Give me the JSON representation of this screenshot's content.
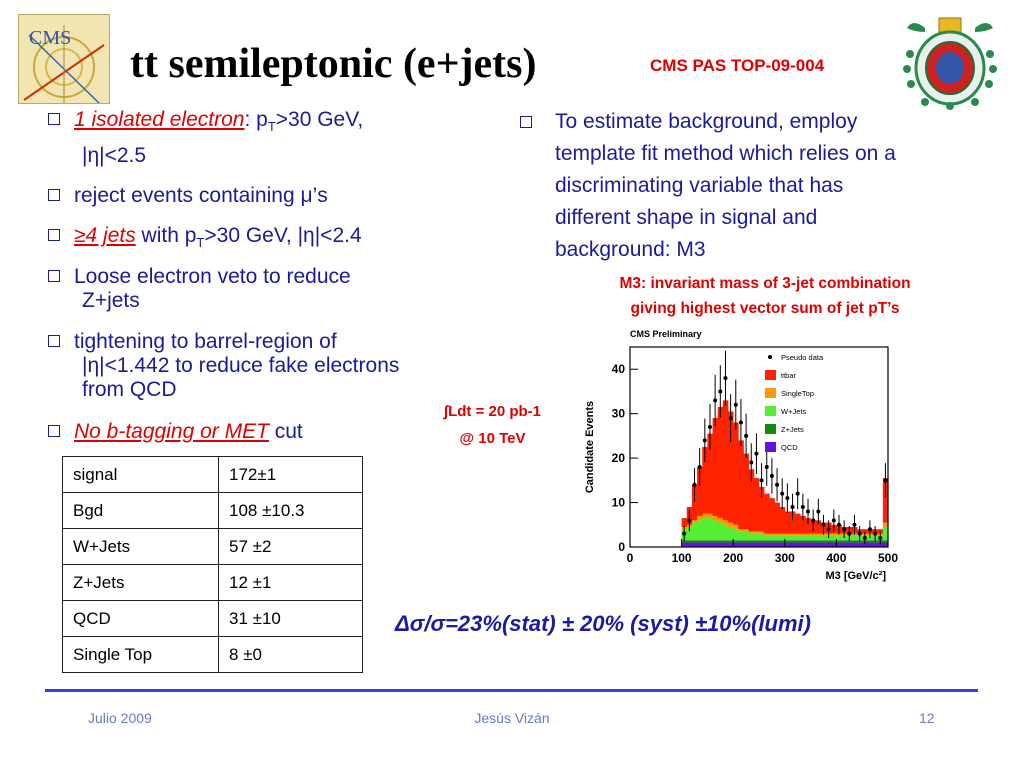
{
  "header": {
    "cms_logo_text": "CMS",
    "title": "tt semileptonic (e+jets)",
    "reference": "CMS PAS TOP-09-004"
  },
  "left_bullets": [
    {
      "em": "1 isolated electron",
      "rest1": ": p",
      "sub": "T",
      "rest2": ">30 GeV,",
      "line2": "|η|<2.5"
    },
    {
      "text": "reject events containing μ’s"
    },
    {
      "em": "≥4 jets",
      "rest1": " with p",
      "sub": "T",
      "rest2": ">30 GeV, |η|<2.4"
    },
    {
      "line1": "Loose electron veto to reduce",
      "line2": "Z+jets"
    },
    {
      "line1": "tightening to barrel-region of",
      "line2": "|η|<1.442 to reduce fake electrons",
      "line3": "from QCD"
    },
    {
      "em": "No b-tagging or MET",
      "rest": " cut"
    }
  ],
  "right_bullet": {
    "lines": [
      "To estimate background, employ",
      "template fit method which relies on a",
      "discriminating variable that has",
      "different shape in signal and",
      "background: M3"
    ]
  },
  "m3_definition": [
    "M3: invariant mass of 3-jet combination",
    "giving highest vector sum of jet pT’s"
  ],
  "luminosity": [
    "∫Ldt  = 20 pb-1",
    "@ 10 TeV"
  ],
  "table": {
    "rows": [
      [
        "signal",
        "172±1"
      ],
      [
        "Bgd",
        "108 ±10.3"
      ],
      [
        "W+Jets",
        "57 ±2"
      ],
      [
        "Z+Jets",
        "12 ±1"
      ],
      [
        "QCD",
        "31 ±10"
      ],
      [
        "Single Top",
        "8 ±0"
      ]
    ]
  },
  "result": "Δσ/σ=23%(stat) ± 20% (syst) ±10%(lumi)",
  "footer": {
    "left": "Julio 2009",
    "center": "Jesús Vizán",
    "right": "12"
  },
  "chart_data": {
    "type": "bar",
    "title": "CMS Preliminary",
    "xlabel": "M3 [GeV/c²]",
    "ylabel": "Candidate Events",
    "xlim": [
      0,
      500
    ],
    "ylim": [
      0,
      45
    ],
    "xticks": [
      "0",
      "100",
      "200",
      "300",
      "400",
      "500"
    ],
    "yticks": [
      "0",
      "10",
      "20",
      "30",
      "40"
    ],
    "bin_width": 10,
    "x": [
      105,
      115,
      125,
      135,
      145,
      155,
      165,
      175,
      185,
      195,
      205,
      215,
      225,
      235,
      245,
      255,
      265,
      275,
      285,
      295,
      305,
      315,
      325,
      335,
      345,
      355,
      365,
      375,
      385,
      395,
      405,
      415,
      425,
      435,
      445,
      455,
      465,
      475,
      485,
      495
    ],
    "legend": [
      "Pseudo data",
      "ttbar",
      "SingleTop",
      "W+Jets",
      "Z+Jets",
      "QCD"
    ],
    "legend_position": "top-right",
    "colors": {
      "ttbar": "#ff2200",
      "SingleTop": "#ff9900",
      "W+Jets": "#55ee33",
      "Z+Jets": "#118811",
      "QCD": "#6611dd"
    },
    "series": [
      {
        "name": "QCD",
        "values": [
          1,
          1,
          1,
          1,
          1,
          1,
          1,
          1,
          1,
          1,
          1,
          1,
          1,
          1,
          1,
          1,
          1,
          1,
          1,
          1,
          1,
          1,
          1,
          1,
          1,
          1,
          1,
          1,
          1,
          1,
          1,
          1,
          1,
          1,
          1,
          1,
          1,
          1,
          1,
          1
        ]
      },
      {
        "name": "Z+Jets",
        "values": [
          0.5,
          0.5,
          0.5,
          0.5,
          0.5,
          0.5,
          0.5,
          0.5,
          0.5,
          0.5,
          0.5,
          0.5,
          0.5,
          0.5,
          0.5,
          0.5,
          0.5,
          0.5,
          0.5,
          0.5,
          0.5,
          0.5,
          0.5,
          0.5,
          0.5,
          0.5,
          0.5,
          0.5,
          0.5,
          0.5,
          0.5,
          0.5,
          0.5,
          0.5,
          0.5,
          0.5,
          0.5,
          0.5,
          0.5,
          0.5
        ]
      },
      {
        "name": "W+Jets",
        "values": [
          2.5,
          3,
          4,
          4.5,
          5,
          5,
          4.5,
          4,
          3.5,
          3,
          2.5,
          2,
          2,
          1.5,
          1.5,
          1.5,
          1,
          1,
          1,
          1,
          1,
          1,
          1,
          1,
          1,
          1,
          1,
          1,
          1,
          1,
          1,
          1,
          1,
          1,
          1,
          1,
          1,
          1,
          1,
          3
        ]
      },
      {
        "name": "SingleTop",
        "values": [
          0.5,
          0.5,
          0.5,
          1,
          1,
          1,
          1,
          1,
          1,
          1,
          1,
          0.5,
          0.5,
          0.5,
          0.5,
          0.5,
          0.5,
          0.5,
          0.5,
          0.5,
          0.5,
          0.5,
          0.5,
          0.5,
          0.5,
          0.5,
          0.5,
          0.5,
          0.5,
          0.5,
          0.5,
          0.5,
          0.5,
          0.5,
          0.5,
          0.5,
          0.5,
          0.5,
          0.5,
          1
        ]
      },
      {
        "name": "ttbar",
        "values": [
          2,
          4,
          8,
          11,
          15,
          18,
          22,
          25,
          27,
          25,
          23,
          20,
          17,
          14,
          12,
          10,
          9,
          8,
          7,
          6,
          5,
          5,
          4.5,
          4,
          3.5,
          3,
          3,
          2.5,
          2.5,
          2,
          2,
          1.5,
          1.5,
          1.5,
          1,
          1,
          1,
          1,
          1,
          10
        ]
      },
      {
        "name": "Pseudo data",
        "values": [
          3,
          6,
          14,
          18,
          24,
          27,
          33,
          35,
          38,
          29,
          32,
          28,
          25,
          19,
          21,
          15,
          18,
          16,
          14,
          12,
          11,
          9,
          12,
          9,
          8,
          6,
          8,
          5,
          4,
          6,
          5,
          4,
          3,
          5,
          3,
          2,
          4,
          3,
          2,
          15
        ]
      }
    ]
  }
}
